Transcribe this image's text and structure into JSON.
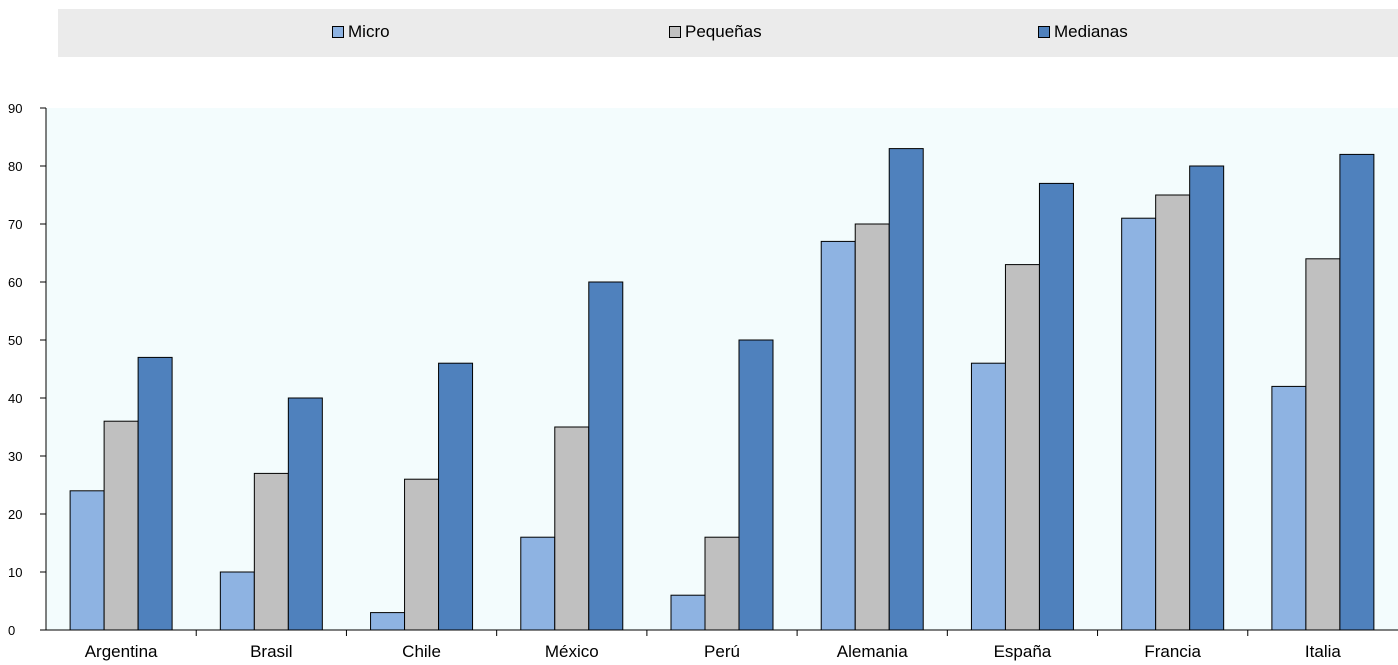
{
  "chart_data": {
    "type": "bar",
    "categories": [
      "Argentina",
      "Brasil",
      "Chile",
      "México",
      "Perú",
      "Alemania",
      "España",
      "Francia",
      "Italia"
    ],
    "series": [
      {
        "name": "Micro",
        "color": "#8eb3e2",
        "values": [
          24,
          10,
          3,
          16,
          6,
          67,
          46,
          71,
          42
        ]
      },
      {
        "name": "Pequeñas",
        "color": "#c0c0c0",
        "values": [
          36,
          27,
          26,
          35,
          16,
          70,
          63,
          75,
          64
        ]
      },
      {
        "name": "Medianas",
        "color": "#4f81bd",
        "values": [
          47,
          40,
          46,
          60,
          50,
          83,
          77,
          80,
          82
        ]
      }
    ],
    "ylim": [
      0,
      90
    ],
    "yticks": [
      0,
      10,
      20,
      30,
      40,
      50,
      60,
      70,
      80,
      90
    ],
    "legend_position": "top",
    "plot_background": "#f3fcfd",
    "grid": false
  }
}
